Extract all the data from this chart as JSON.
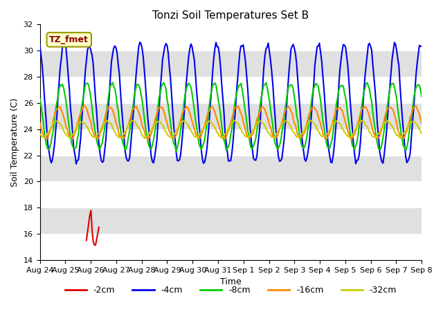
{
  "title": "Tonzi Soil Temperatures Set B",
  "xlabel": "Time",
  "ylabel": "Soil Temperature (C)",
  "ylim": [
    14,
    32
  ],
  "legend_labels": [
    "-2cm",
    "-4cm",
    "-8cm",
    "-16cm",
    "-32cm"
  ],
  "legend_colors": [
    "#dd0000",
    "#0000ee",
    "#00cc00",
    "#ff8800",
    "#cccc00"
  ],
  "tz_fmet_label": "TZ_fmet",
  "background_color": "#ffffff",
  "x_tick_labels": [
    "Aug 24",
    "Aug 25",
    "Aug 26",
    "Aug 27",
    "Aug 28",
    "Aug 29",
    "Aug 30",
    "Aug 31",
    "Sep 1",
    "Sep 2",
    "Sep 3",
    "Sep 4",
    "Sep 5",
    "Sep 6",
    "Sep 7",
    "Sep 8"
  ],
  "num_points": 337,
  "start_day": 0,
  "end_day": 15
}
